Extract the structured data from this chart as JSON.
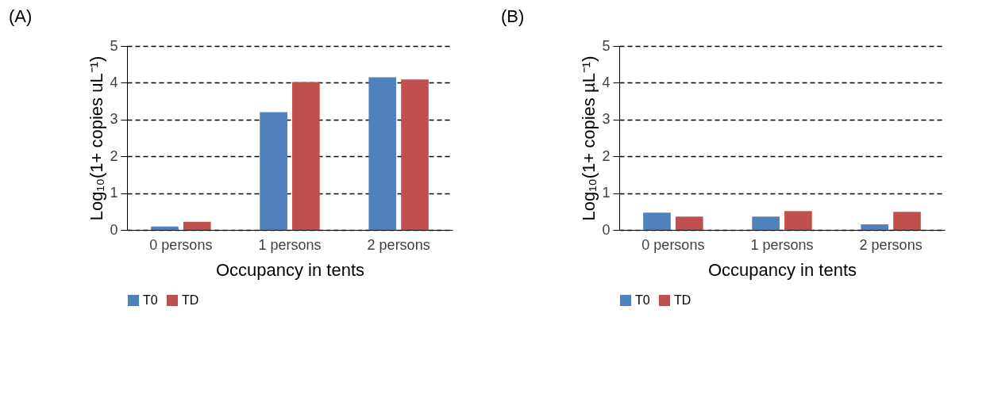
{
  "chart_data": [
    {
      "type": "bar",
      "title": "(A)",
      "xlabel": "Occupancy in tents",
      "ylabel": "Log₁₀(1+ copies uL⁻¹)",
      "categories": [
        "0 persons",
        "1 persons",
        "2 persons"
      ],
      "series": [
        {
          "name": "T0",
          "color": "#4f81bd",
          "values": [
            0.09,
            3.2,
            4.15
          ]
        },
        {
          "name": "TD",
          "color": "#c0504d",
          "values": [
            0.22,
            4.02,
            4.09
          ]
        }
      ],
      "ylim": [
        0,
        5
      ],
      "yticks": [
        0,
        1,
        2,
        3,
        4,
        5
      ],
      "grid": "y",
      "legend": "bottom"
    },
    {
      "type": "bar",
      "title": "(B)",
      "xlabel": "Occupancy in tents",
      "ylabel": "Log₁₀(1+ copies µL⁻¹)",
      "categories": [
        "0 persons",
        "1 persons",
        "2 persons"
      ],
      "series": [
        {
          "name": "T0",
          "color": "#4f81bd",
          "values": [
            0.47,
            0.36,
            0.15
          ]
        },
        {
          "name": "TD",
          "color": "#c0504d",
          "values": [
            0.36,
            0.51,
            0.49
          ]
        }
      ],
      "ylim": [
        0,
        5
      ],
      "yticks": [
        0,
        1,
        2,
        3,
        4,
        5
      ],
      "grid": "y",
      "legend": "bottom"
    }
  ]
}
